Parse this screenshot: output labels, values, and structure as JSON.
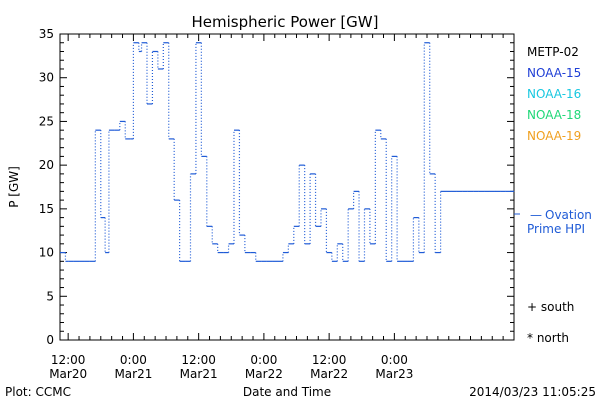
{
  "chart_data": {
    "type": "line",
    "title": "Hemispheric Power [GW]",
    "ylabel": "P [GW]",
    "xlabel": "Date and Time",
    "ylim": [
      0,
      35
    ],
    "y_ticks": [
      0,
      5,
      10,
      15,
      20,
      25,
      30,
      35
    ],
    "xlim_hours": [
      -1.5,
      82
    ],
    "x_ticks": [
      {
        "hour": 0,
        "line1": "12:00",
        "line2": "Mar20"
      },
      {
        "hour": 12,
        "line1": "0:00",
        "line2": "Mar21"
      },
      {
        "hour": 24,
        "line1": "12:00",
        "line2": "Mar21"
      },
      {
        "hour": 36,
        "line1": "0:00",
        "line2": "Mar22"
      },
      {
        "hour": 48,
        "line1": "12:00",
        "line2": "Mar22"
      },
      {
        "hour": 60,
        "line1": "0:00",
        "line2": "Mar23"
      }
    ],
    "legend": [
      {
        "label": "METP-02",
        "color": "#000000"
      },
      {
        "label": "NOAA-15",
        "color": "#1f3fd6"
      },
      {
        "label": "NOAA-16",
        "color": "#18c8e0"
      },
      {
        "label": "NOAA-18",
        "color": "#20d878"
      },
      {
        "label": "NOAA-19",
        "color": "#f0a020"
      }
    ],
    "series": [
      {
        "name": "Ovation Prime HPI",
        "color": "#1f5bd6",
        "x_hours": [
          -1.5,
          -0.5,
          0.0,
          1.0,
          2.0,
          3.0,
          4.0,
          5.0,
          6.0,
          6.8,
          7.5,
          8.5,
          9.5,
          10.5,
          11.5,
          12.0,
          13.0,
          13.5,
          14.5,
          15.5,
          16.5,
          17.5,
          18.5,
          19.5,
          20.5,
          21.5,
          22.5,
          23.5,
          24.5,
          25.5,
          26.5,
          27.5,
          28.5,
          29.5,
          30.5,
          31.5,
          32.5,
          33.5,
          34.5,
          35.5,
          36.5,
          37.5,
          38.5,
          39.5,
          40.5,
          41.5,
          42.5,
          43.5,
          44.5,
          45.5,
          46.5,
          47.5,
          48.5,
          49.5,
          50.5,
          51.5,
          52.5,
          53.5,
          54.5,
          55.5,
          56.5,
          57.5,
          58.5,
          59.5,
          60.5,
          61.5,
          62.5,
          63.5,
          64.5,
          65.5,
          66.5,
          67.5,
          68.5,
          69.5,
          70.5,
          71.5,
          72.5,
          73.5,
          74.5,
          75.5,
          76.5,
          77.5,
          78.5,
          79.5,
          80.5,
          82.0
        ],
        "values": [
          10,
          9,
          9,
          9,
          9,
          9,
          9,
          24,
          14,
          10,
          24,
          24,
          25,
          23,
          23,
          34,
          33,
          34,
          27,
          33,
          31,
          34,
          23,
          16,
          9,
          9,
          19,
          34,
          21,
          13,
          11,
          10,
          10,
          11,
          24,
          12,
          10,
          10,
          9,
          9,
          9,
          9,
          9,
          10,
          11,
          13,
          20,
          11,
          19,
          13,
          15,
          10,
          9,
          11,
          9,
          15,
          17,
          9,
          15,
          11,
          24,
          23,
          9,
          21,
          9,
          9,
          9,
          14,
          10,
          34,
          19,
          10,
          17,
          17,
          17,
          17,
          17,
          17,
          17,
          17,
          17,
          17,
          17,
          17,
          17,
          17
        ]
      }
    ]
  },
  "right_panel": {
    "ovation_marker": "—",
    "ovation_line1": "Ovation",
    "ovation_line2": "Prime HPI",
    "south_label": "+ south",
    "north_label": "* north"
  },
  "footer": {
    "plot_credit": "Plot: CCMC",
    "timestamp": "2014/03/23 11:05:25"
  }
}
